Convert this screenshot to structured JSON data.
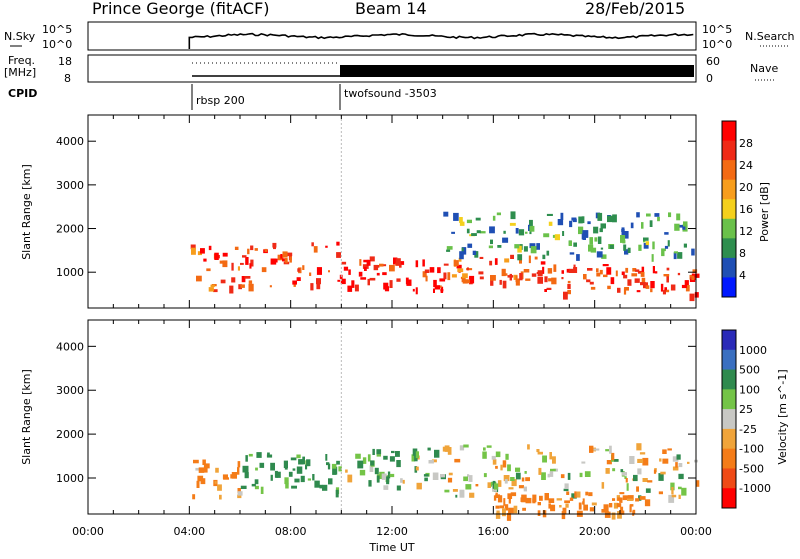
{
  "header": {
    "station": "Prince George (fitACF)",
    "beam": "Beam 14",
    "date": "28/Feb/2015"
  },
  "strip_labels": {
    "nsky": "N.Sky",
    "nsky_top": "10^5",
    "nsky_bottom": "10^0",
    "nsearch": "N.Search",
    "nsearch_top": "10^5",
    "nsearch_bottom": "10^0",
    "freq": "Freq.",
    "freq_unit": "[MHz]",
    "freq_top": "18",
    "freq_bottom": "8",
    "nave": "Nave",
    "nave_top": "60",
    "nave_bottom": "0",
    "cpid": "CPID",
    "mode1": "rbsp 200",
    "mode2": "twofsound -3503"
  },
  "colors": {
    "power": [
      "#0018ff",
      "#1f4fb4",
      "#2e8e4e",
      "#6ac14a",
      "#f4d01c",
      "#f79d1c",
      "#f36a13",
      "#ef2a17",
      "#ff0000"
    ],
    "velocity": [
      "#2a2ab8",
      "#3a6fc0",
      "#2f8a4e",
      "#74c447",
      "#c8c8c4",
      "#f0a43a",
      "#f47c18",
      "#ef4a16",
      "#ff0000"
    ]
  },
  "chart_data": [
    {
      "type": "heatmap",
      "title": "Power",
      "ylabel": "Slant Range [km]",
      "xlabel": "Time UT",
      "ylim": [
        180,
        4600
      ],
      "xlim": [
        0,
        24
      ],
      "yticks": [
        "1000",
        "2000",
        "3000",
        "4000"
      ],
      "xticks": [
        "00:00",
        "04:00",
        "08:00",
        "12:00",
        "16:00",
        "20:00",
        "00:00"
      ],
      "colorbar_label": "Power [dB]",
      "colorbar_ticks": [
        "4",
        "8",
        "12",
        "16",
        "20",
        "24",
        "28"
      ],
      "data_start_hour": 4.0,
      "mode_change_hour": 10.0,
      "features": [
        {
          "t0": 4.0,
          "t1": 6.0,
          "r0": 600,
          "r1": 1700,
          "level": 24
        },
        {
          "t0": 6.0,
          "t1": 10.0,
          "r0": 700,
          "r1": 1700,
          "level": 26
        },
        {
          "t0": 10.0,
          "t1": 14.0,
          "r0": 600,
          "r1": 1400,
          "level": 28
        },
        {
          "t0": 14.0,
          "t1": 18.0,
          "r0": 800,
          "r1": 1400,
          "level": 24
        },
        {
          "t0": 18.0,
          "t1": 24.0,
          "r0": 500,
          "r1": 1200,
          "level": 26
        },
        {
          "t0": 14.0,
          "t1": 24.0,
          "r0": 1400,
          "r1": 2400,
          "level": 10
        }
      ]
    },
    {
      "type": "heatmap",
      "title": "Velocity",
      "ylabel": "Slant Range [km]",
      "xlabel": "Time UT",
      "ylim": [
        180,
        4600
      ],
      "xlim": [
        0,
        24
      ],
      "yticks": [
        "1000",
        "2000",
        "3000",
        "4000"
      ],
      "xticks": [
        "00:00",
        "04:00",
        "08:00",
        "12:00",
        "16:00",
        "20:00",
        "00:00"
      ],
      "colorbar_label": "Velocity [m s^-1]",
      "colorbar_ticks": [
        "1000",
        "500",
        "100",
        "25",
        "-25",
        "-100",
        "-500",
        "-1000"
      ],
      "features": [
        {
          "t0": 4.0,
          "t1": 6.0,
          "r0": 600,
          "r1": 1500,
          "level": -150
        },
        {
          "t0": 6.0,
          "t1": 10.0,
          "r0": 700,
          "r1": 1600,
          "level": 200
        },
        {
          "t0": 10.0,
          "t1": 14.0,
          "r0": 800,
          "r1": 1700,
          "level": 90
        },
        {
          "t0": 14.0,
          "t1": 24.0,
          "r0": 600,
          "r1": 1800,
          "level": 0
        },
        {
          "t0": 16.0,
          "t1": 22.0,
          "r0": 200,
          "r1": 700,
          "level": -200
        }
      ]
    }
  ]
}
